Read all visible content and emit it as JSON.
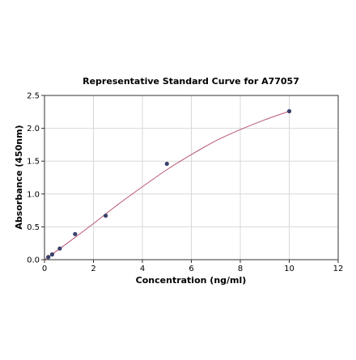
{
  "chart_data": {
    "type": "scatter",
    "title": "Representative Standard Curve for A77057",
    "xlabel": "Concentration (ng/ml)",
    "ylabel": "Absorbance (450nm)",
    "xlim": [
      0,
      12
    ],
    "ylim": [
      0,
      2.5
    ],
    "x_ticks": [
      "0",
      "2",
      "4",
      "6",
      "8",
      "10",
      "12"
    ],
    "y_ticks": [
      "0.0",
      "0.5",
      "1.0",
      "1.5",
      "2.0",
      "2.5"
    ],
    "grid": true,
    "legend": "none",
    "points": [
      {
        "x": 0.156,
        "y": 0.04
      },
      {
        "x": 0.3125,
        "y": 0.08
      },
      {
        "x": 0.625,
        "y": 0.17
      },
      {
        "x": 1.25,
        "y": 0.39
      },
      {
        "x": 2.5,
        "y": 0.67
      },
      {
        "x": 5,
        "y": 1.46
      },
      {
        "x": 10,
        "y": 2.26
      }
    ],
    "fit_curve": [
      {
        "x": 0,
        "y": 0.0
      },
      {
        "x": 1,
        "y": 0.27
      },
      {
        "x": 2,
        "y": 0.55
      },
      {
        "x": 3,
        "y": 0.84
      },
      {
        "x": 4,
        "y": 1.11
      },
      {
        "x": 5,
        "y": 1.37
      },
      {
        "x": 6,
        "y": 1.6
      },
      {
        "x": 7,
        "y": 1.81
      },
      {
        "x": 8,
        "y": 1.98
      },
      {
        "x": 9,
        "y": 2.13
      },
      {
        "x": 10,
        "y": 2.26
      }
    ],
    "colors": {
      "point": "#3a3f6b",
      "curve": "#b85670",
      "grid": "#d8d8d8",
      "axis": "#333333"
    }
  }
}
